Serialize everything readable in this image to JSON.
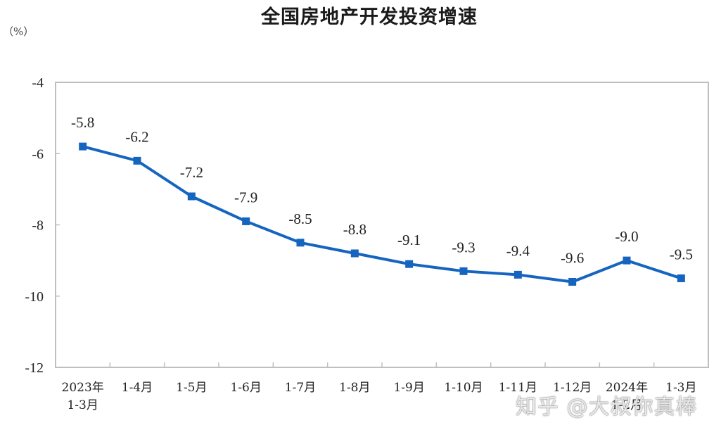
{
  "header": {
    "title": "全国房地产开发投资增速",
    "unit": "（%）"
  },
  "watermark": "知乎 @大叔你真棒",
  "colors": {
    "line": "#1565c0",
    "marker": "#1565c0",
    "frame": "#bfbfbf"
  },
  "chart_data": {
    "type": "line",
    "title": "全国房地产开发投资增速",
    "xlabel": "",
    "ylabel": "（%）",
    "ylim": [
      -12,
      -4
    ],
    "yticks": [
      -4,
      -6,
      -8,
      -10,
      -12
    ],
    "grid": false,
    "legend": null,
    "categories": [
      "2023年 1-3月",
      "1-4月",
      "1-5月",
      "1-6月",
      "1-7月",
      "1-8月",
      "1-9月",
      "1-10月",
      "1-11月",
      "1-12月",
      "2024年 1-2月",
      "1-3月"
    ],
    "category_lines": [
      [
        "2023年",
        "1-3月"
      ],
      [
        "1-4月"
      ],
      [
        "1-5月"
      ],
      [
        "1-6月"
      ],
      [
        "1-7月"
      ],
      [
        "1-8月"
      ],
      [
        "1-9月"
      ],
      [
        "1-10月"
      ],
      [
        "1-11月"
      ],
      [
        "1-12月"
      ],
      [
        "2024年",
        "1-2月"
      ],
      [
        "1-3月"
      ]
    ],
    "series": [
      {
        "name": "全国房地产开发投资增速",
        "values": [
          -5.8,
          -6.2,
          -7.2,
          -7.9,
          -8.5,
          -8.8,
          -9.1,
          -9.3,
          -9.4,
          -9.6,
          -9.0,
          -9.5
        ],
        "labels": [
          "-5.8",
          "-6.2",
          "-7.2",
          "-7.9",
          "-8.5",
          "-8.8",
          "-9.1",
          "-9.3",
          "-9.4",
          "-9.6",
          "-9.0",
          "-9.5"
        ]
      }
    ]
  }
}
